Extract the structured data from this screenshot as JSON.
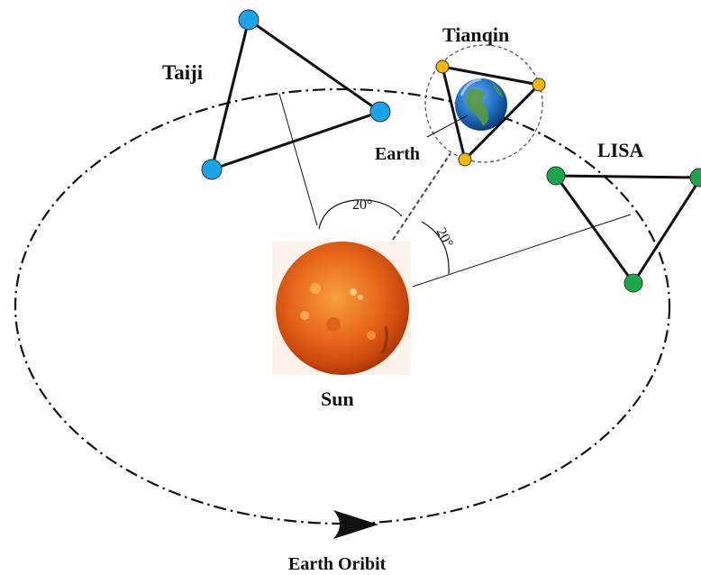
{
  "labels": {
    "taiji": "Taiji",
    "tianqin": "Tianqin",
    "earth": "Earth",
    "lisa": "LISA",
    "sun": "Sun",
    "orbit": "Earth Oribit",
    "angle_left": "20°",
    "angle_right": "20°"
  },
  "colors": {
    "taiji_node": "#1aa3e8",
    "tianqin_node": "#f5b800",
    "lisa_node": "#1aa64a",
    "sun_core": "#f07a18",
    "sun_edge": "#b83a08",
    "earth_ocean": "#1f6fc4",
    "earth_land": "#5a9a3a",
    "line": "#111111"
  },
  "icons": {
    "orbit_arrow": "direction-arrow-icon",
    "sun": "sun-icon",
    "earth": "earth-icon"
  }
}
